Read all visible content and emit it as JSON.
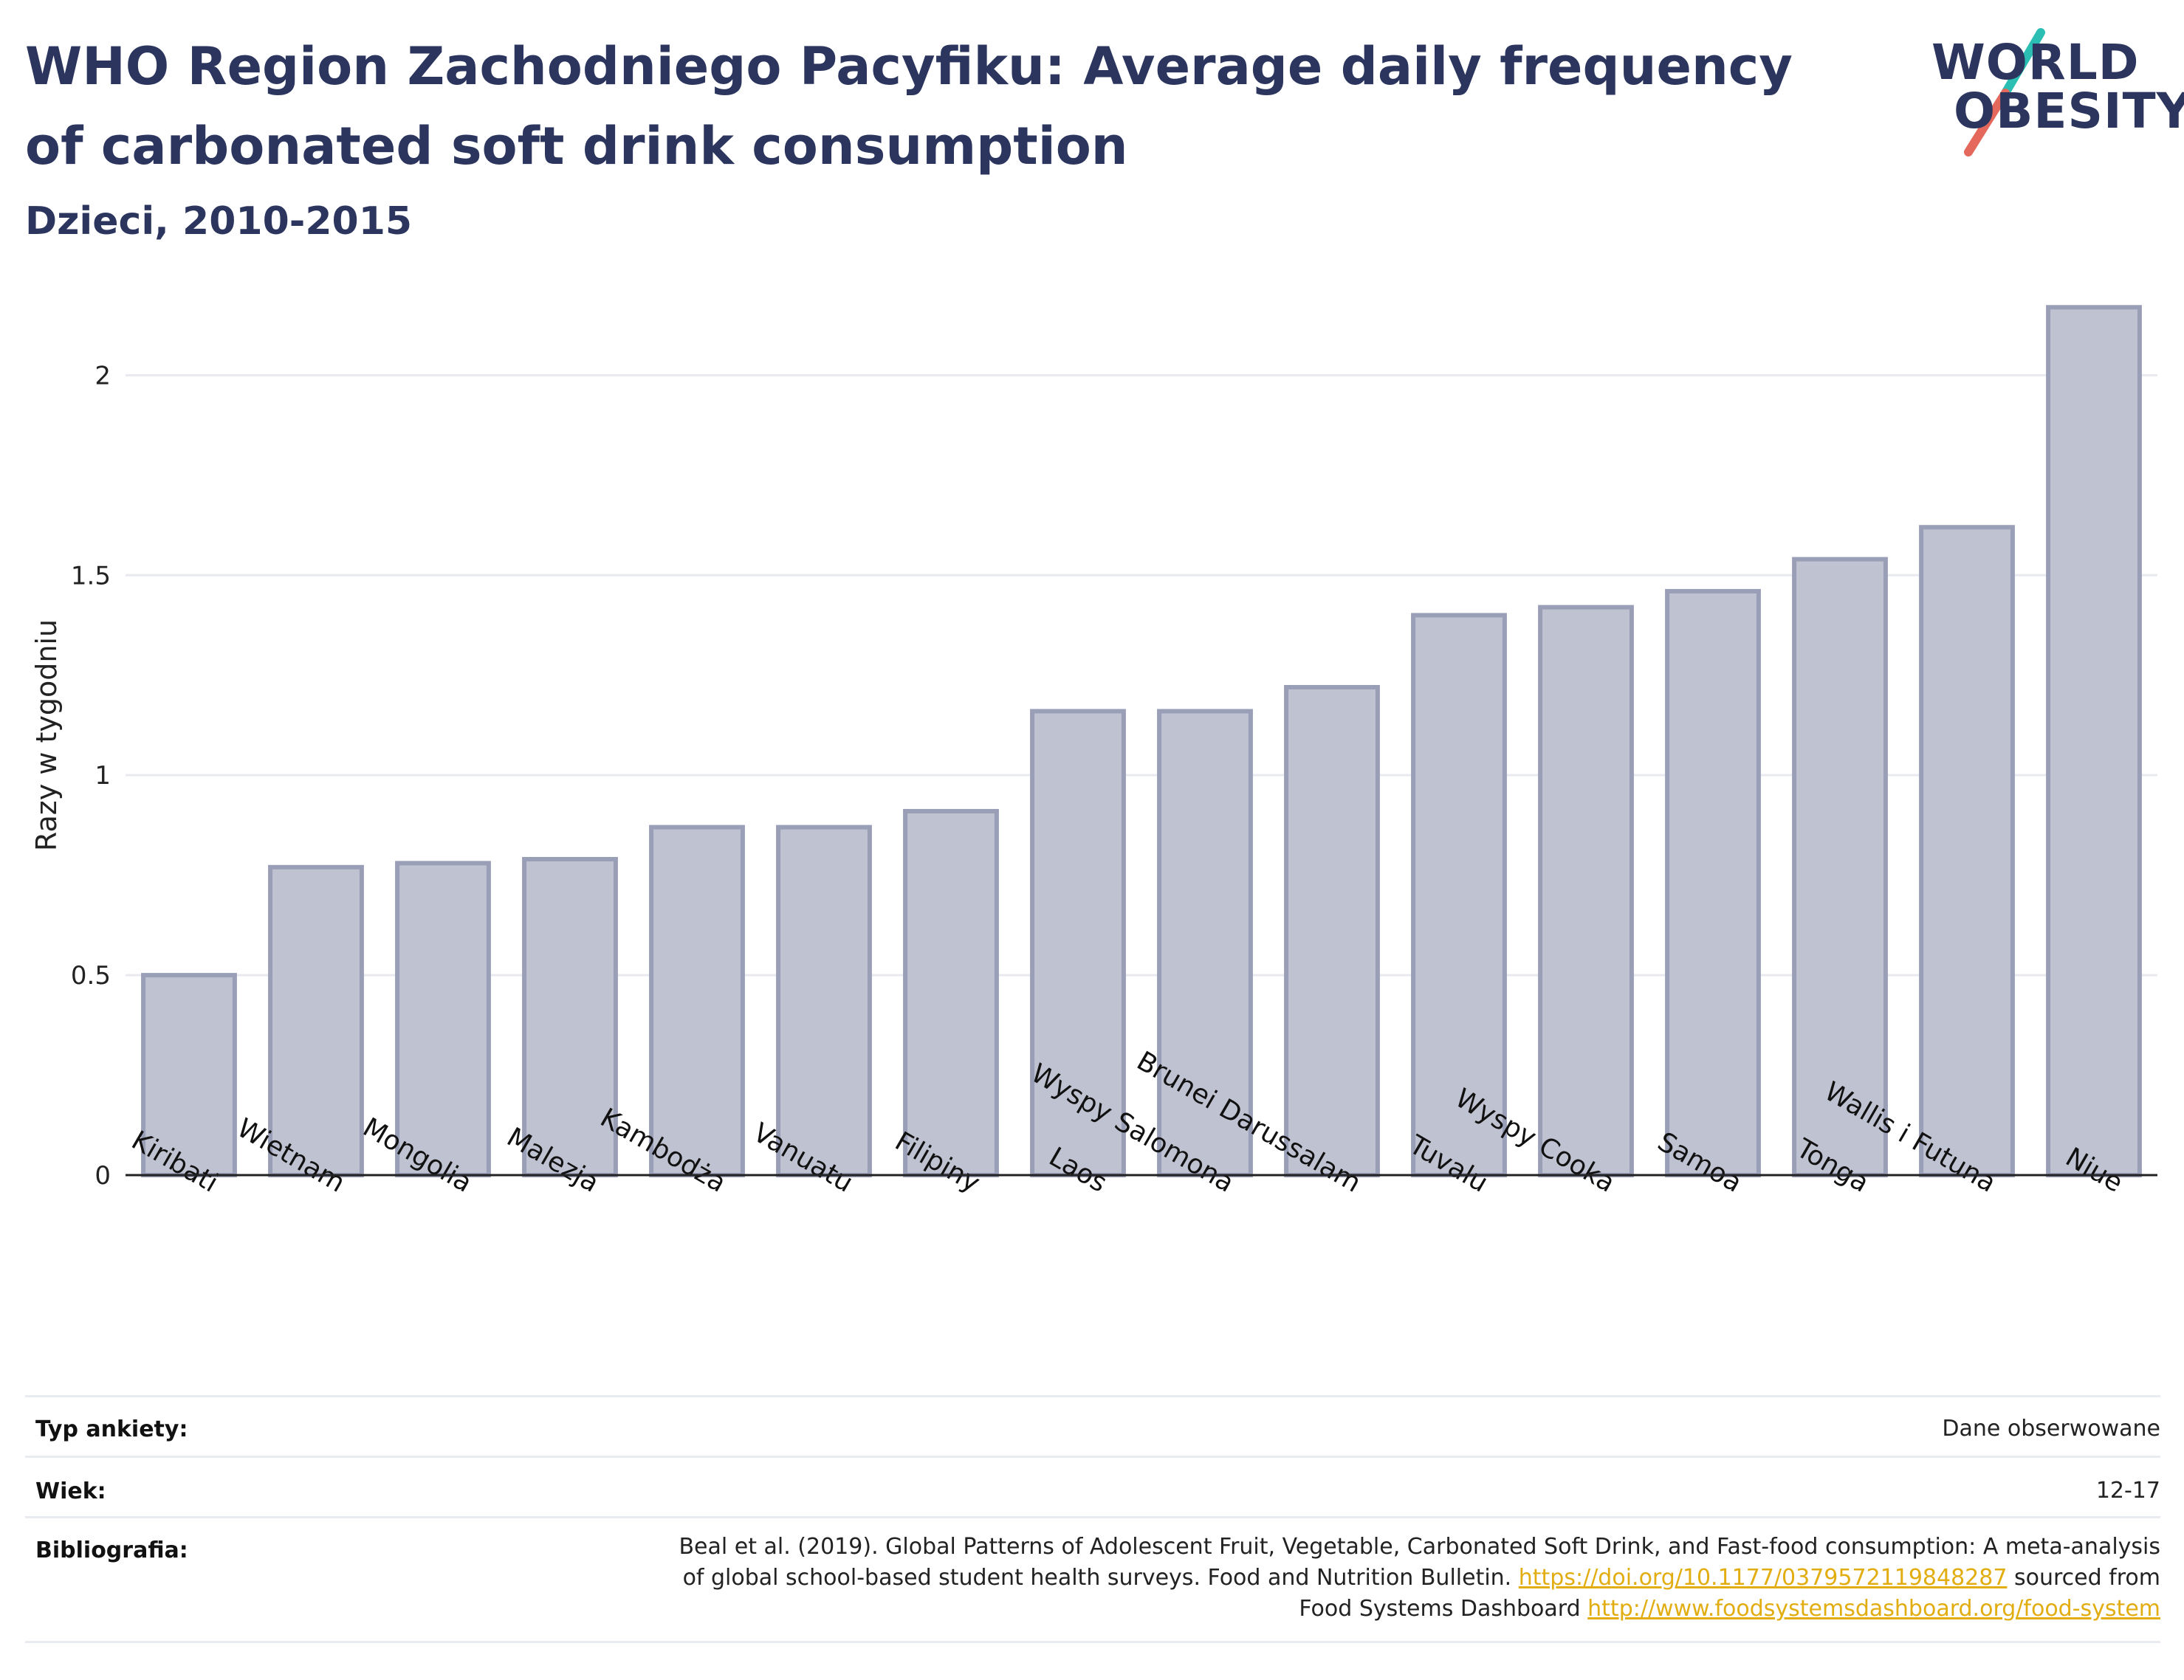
{
  "header": {
    "title": "WHO Region Zachodniego Pacyfiku: Average daily frequency of carbonated soft drink consumption",
    "subtitle": "Dzieci, 2010-2015"
  },
  "logo": {
    "line1": "WORLD",
    "line2": "OBESITY",
    "colors": {
      "text": "#2b355e",
      "slash_top": "#2bbfb3",
      "slash_bottom": "#e5685c"
    }
  },
  "chart_data": {
    "type": "bar",
    "title": "",
    "xlabel": "",
    "ylabel": "Razy w tygodniu",
    "ylim": [
      0,
      2.2
    ],
    "yticks": [
      0,
      0.5,
      1,
      1.5,
      2
    ],
    "ytick_labels": [
      "0",
      "0.5",
      "1",
      "1.5",
      "2"
    ],
    "grid": true,
    "categories": [
      "Kiribati",
      "Wietnam",
      "Mongolia",
      "Malezja",
      "Kambodża",
      "Vanuatu",
      "Filipiny",
      "Laos",
      "Wyspy Salomona",
      "Brunei Darussalam",
      "Tuvalu",
      "Wyspy Cooka",
      "Samoa",
      "Tonga",
      "Wallis i Futuna",
      "Niue"
    ],
    "values": [
      0.5,
      0.77,
      0.78,
      0.79,
      0.87,
      0.87,
      0.91,
      1.16,
      1.16,
      1.22,
      1.4,
      1.42,
      1.46,
      1.54,
      1.62,
      2.17
    ],
    "colors": {
      "bar_fill": "#bfc2d0",
      "bar_stroke": "#9a9fb8",
      "grid": "#e8eaf0",
      "axis": "#222222"
    }
  },
  "info": {
    "survey_label": "Typ ankiety:",
    "survey_value": "Dane obserwowane",
    "age_label": "Wiek:",
    "age_value": "12-17",
    "bib_label": "Bibliografia:",
    "bib_line1": "Beal et al. (2019). Global Patterns of Adolescent Fruit, Vegetable, Carbonated Soft Drink, and Fast-food consumption: A meta-analysis",
    "bib_line2_text": "of global school-based student health surveys. Food and Nutrition Bulletin. ",
    "bib_line2_link": "https://doi.org/10.1177/0379572119848287",
    "bib_line2_tail": " sourced from",
    "bib_line3_text": "Food Systems Dashboard ",
    "bib_line3_link": "http://www.foodsystemsdashboard.org/food-system"
  }
}
